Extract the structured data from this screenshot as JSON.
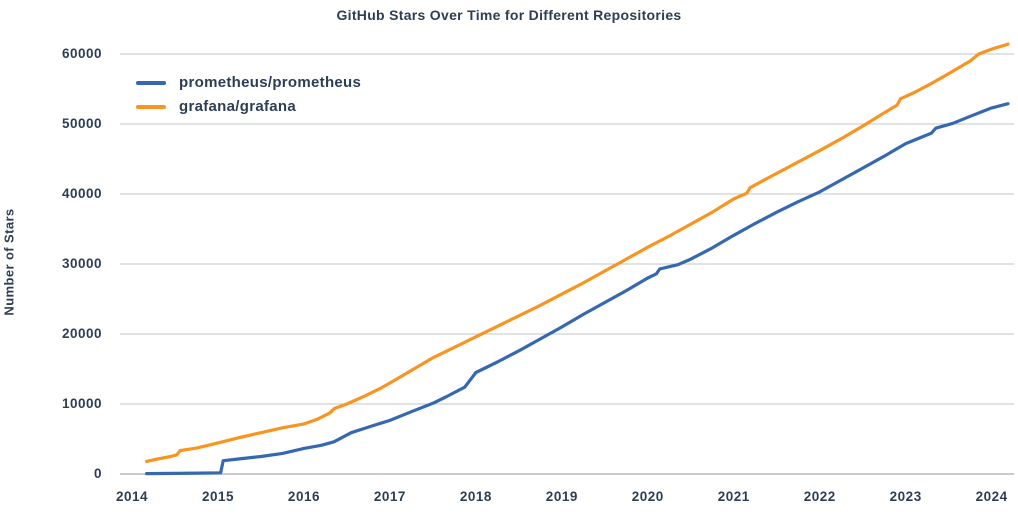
{
  "colors": {
    "text": "#2d3e54",
    "grid": "#c3c6ca",
    "axis": "#93979c",
    "background": "#ffffff",
    "prometheus_blue": "#3568b0",
    "grafana_orange": "#f8941f"
  },
  "chart_data": {
    "type": "line",
    "title": "GitHub Stars Over Time for Different Repositories",
    "xlabel": "",
    "ylabel": "Number of Stars",
    "grid": "horizontal",
    "legend_position": "top-left-inside",
    "xlim": [
      2013.86,
      2024.26
    ],
    "ylim": [
      0,
      62000
    ],
    "x_ticks": [
      2014,
      2015,
      2016,
      2017,
      2018,
      2019,
      2020,
      2021,
      2022,
      2023,
      2024
    ],
    "y_ticks": [
      0,
      10000,
      20000,
      30000,
      40000,
      50000,
      60000
    ],
    "series": [
      {
        "name": "prometheus/prometheus",
        "color_key": "prometheus_blue",
        "points": [
          [
            2014.17,
            60
          ],
          [
            2014.5,
            90
          ],
          [
            2014.8,
            130
          ],
          [
            2015.03,
            160
          ],
          [
            2015.06,
            1900
          ],
          [
            2015.25,
            2150
          ],
          [
            2015.5,
            2500
          ],
          [
            2015.75,
            2950
          ],
          [
            2016.0,
            3650
          ],
          [
            2016.2,
            4100
          ],
          [
            2016.35,
            4600
          ],
          [
            2016.55,
            5900
          ],
          [
            2016.75,
            6700
          ],
          [
            2017.0,
            7650
          ],
          [
            2017.25,
            8900
          ],
          [
            2017.5,
            10100
          ],
          [
            2017.65,
            11000
          ],
          [
            2017.87,
            12400
          ],
          [
            2018.0,
            14500
          ],
          [
            2018.25,
            16000
          ],
          [
            2018.5,
            17600
          ],
          [
            2018.75,
            19300
          ],
          [
            2019.0,
            21000
          ],
          [
            2019.25,
            22800
          ],
          [
            2019.5,
            24500
          ],
          [
            2019.75,
            26200
          ],
          [
            2020.0,
            28000
          ],
          [
            2020.1,
            28600
          ],
          [
            2020.14,
            29300
          ],
          [
            2020.35,
            29900
          ],
          [
            2020.5,
            30700
          ],
          [
            2020.75,
            32300
          ],
          [
            2021.0,
            34100
          ],
          [
            2021.25,
            35800
          ],
          [
            2021.5,
            37400
          ],
          [
            2021.75,
            38900
          ],
          [
            2022.0,
            40300
          ],
          [
            2022.25,
            42000
          ],
          [
            2022.5,
            43700
          ],
          [
            2022.75,
            45400
          ],
          [
            2023.0,
            47200
          ],
          [
            2023.3,
            48700
          ],
          [
            2023.35,
            49400
          ],
          [
            2023.55,
            50100
          ],
          [
            2023.75,
            51100
          ],
          [
            2024.0,
            52300
          ],
          [
            2024.19,
            52900
          ]
        ]
      },
      {
        "name": "grafana/grafana",
        "color_key": "grafana_orange",
        "points": [
          [
            2014.17,
            1800
          ],
          [
            2014.3,
            2150
          ],
          [
            2014.45,
            2500
          ],
          [
            2014.52,
            2750
          ],
          [
            2014.56,
            3350
          ],
          [
            2014.75,
            3700
          ],
          [
            2015.0,
            4450
          ],
          [
            2015.25,
            5200
          ],
          [
            2015.5,
            5900
          ],
          [
            2015.75,
            6600
          ],
          [
            2016.0,
            7150
          ],
          [
            2016.15,
            7800
          ],
          [
            2016.3,
            8700
          ],
          [
            2016.36,
            9400
          ],
          [
            2016.5,
            10000
          ],
          [
            2016.7,
            11100
          ],
          [
            2016.9,
            12300
          ],
          [
            2017.0,
            13000
          ],
          [
            2017.25,
            14800
          ],
          [
            2017.5,
            16600
          ],
          [
            2017.75,
            18100
          ],
          [
            2018.0,
            19600
          ],
          [
            2018.25,
            21100
          ],
          [
            2018.5,
            22600
          ],
          [
            2018.75,
            24100
          ],
          [
            2019.0,
            25700
          ],
          [
            2019.25,
            27300
          ],
          [
            2019.5,
            29000
          ],
          [
            2019.75,
            30700
          ],
          [
            2020.0,
            32400
          ],
          [
            2020.25,
            34000
          ],
          [
            2020.5,
            35700
          ],
          [
            2020.75,
            37400
          ],
          [
            2021.0,
            39300
          ],
          [
            2021.15,
            40100
          ],
          [
            2021.19,
            40900
          ],
          [
            2021.4,
            42300
          ],
          [
            2021.6,
            43600
          ],
          [
            2021.8,
            44900
          ],
          [
            2022.0,
            46200
          ],
          [
            2022.25,
            47900
          ],
          [
            2022.5,
            49700
          ],
          [
            2022.75,
            51600
          ],
          [
            2022.9,
            52700
          ],
          [
            2022.94,
            53600
          ],
          [
            2023.1,
            54500
          ],
          [
            2023.3,
            55800
          ],
          [
            2023.5,
            57200
          ],
          [
            2023.75,
            59000
          ],
          [
            2023.85,
            60000
          ],
          [
            2024.0,
            60700
          ],
          [
            2024.19,
            61400
          ]
        ]
      }
    ]
  }
}
